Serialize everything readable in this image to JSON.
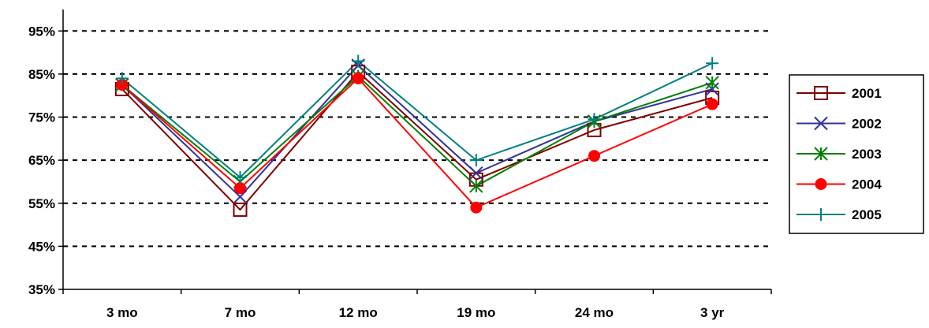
{
  "chart_data": {
    "type": "line",
    "title": "",
    "xlabel": "",
    "ylabel": "",
    "categories": [
      "3 mo",
      "7 mo",
      "12 mo",
      "19 mo",
      "24 mo",
      "3 yr"
    ],
    "y_ticks": [
      "35%",
      "45%",
      "55%",
      "65%",
      "75%",
      "85%",
      "95%"
    ],
    "ylim": [
      35,
      100
    ],
    "grid": "horizontal dashed",
    "legend_position": "right",
    "series": [
      {
        "name": "2001",
        "color": "#800000",
        "marker": "square",
        "values": [
          81.5,
          53.5,
          85.5,
          60.5,
          72,
          79.5
        ]
      },
      {
        "name": "2002",
        "color": "#333399",
        "marker": "x",
        "values": [
          82.5,
          56.5,
          87,
          62,
          74,
          81.5
        ]
      },
      {
        "name": "2003",
        "color": "#008000",
        "marker": "asterisk",
        "values": [
          82.5,
          60,
          84.5,
          59,
          74,
          83
        ]
      },
      {
        "name": "2004",
        "color": "#ff0000",
        "marker": "circle",
        "values": [
          82.5,
          58.5,
          84,
          54,
          66,
          78
        ]
      },
      {
        "name": "2005",
        "color": "#008080",
        "marker": "plus",
        "values": [
          84,
          61,
          88,
          65,
          74.5,
          87.5
        ]
      }
    ]
  }
}
